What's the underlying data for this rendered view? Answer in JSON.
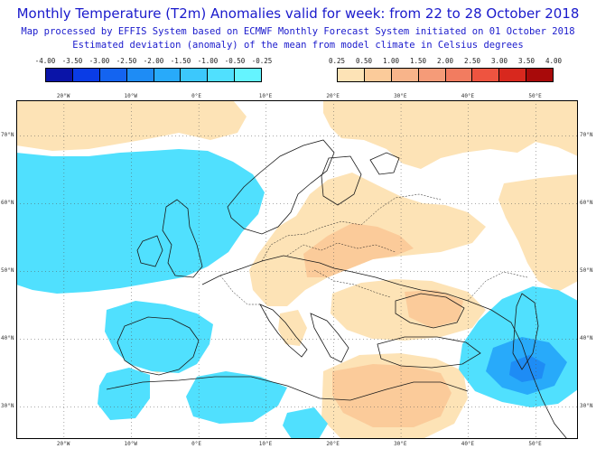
{
  "header": {
    "title": "Monthly Temperature (T2m) Anomalies valid for week: from 22 to 28 October 2018",
    "subtitle1": "Map processed by EFFIS System based on ECMWF Monthly Forecast System initiated on 01 October 2018",
    "subtitle2": "Estimated deviation (anomaly) of the mean from model climate in Celsius degrees"
  },
  "legend": {
    "cold": {
      "labels": [
        "-4.00",
        "-3.50",
        "-3.00",
        "-2.50",
        "-2.00",
        "-1.50",
        "-1.00",
        "-0.50",
        "-0.25"
      ],
      "colors": [
        "#0a14a8",
        "#0a3ce6",
        "#1464f0",
        "#1e8cf5",
        "#28aafa",
        "#3cc8fc",
        "#50e0fe",
        "#64f4ff"
      ]
    },
    "warm": {
      "labels": [
        "0.25",
        "0.50",
        "1.00",
        "1.50",
        "2.00",
        "2.50",
        "3.00",
        "3.50",
        "4.00"
      ],
      "colors": [
        "#fde3b6",
        "#fbcb9a",
        "#f8b48a",
        "#f59b78",
        "#f27c60",
        "#ee5440",
        "#d8281e",
        "#a80a0a"
      ]
    }
  },
  "map": {
    "lon_labels_top": [
      "20°W",
      "10°W",
      "0°E",
      "10°E",
      "20°E",
      "30°E",
      "40°E",
      "50°E"
    ],
    "lon_labels_bottom": [
      "20°W",
      "10°W",
      "0°E",
      "10°E",
      "20°E",
      "30°E",
      "40°E",
      "50°E"
    ],
    "lat_labels_left": [
      "70°N",
      "60°N",
      "50°N",
      "40°N",
      "30°N"
    ],
    "lat_labels_right": [
      "70°N",
      "60°N",
      "50°N",
      "40°N",
      "30°N"
    ],
    "colors": {
      "cold": "#50e0fe",
      "cold_light": "#64f4ff",
      "cold_mid": "#28aafa",
      "cold_deep": "#1e8cf5",
      "warm_light": "#fde3b6",
      "warm_mid": "#fbcb9a",
      "warm_deep": "#f8b48a",
      "coast": "#1a1a1a",
      "grid": "#555555"
    }
  }
}
